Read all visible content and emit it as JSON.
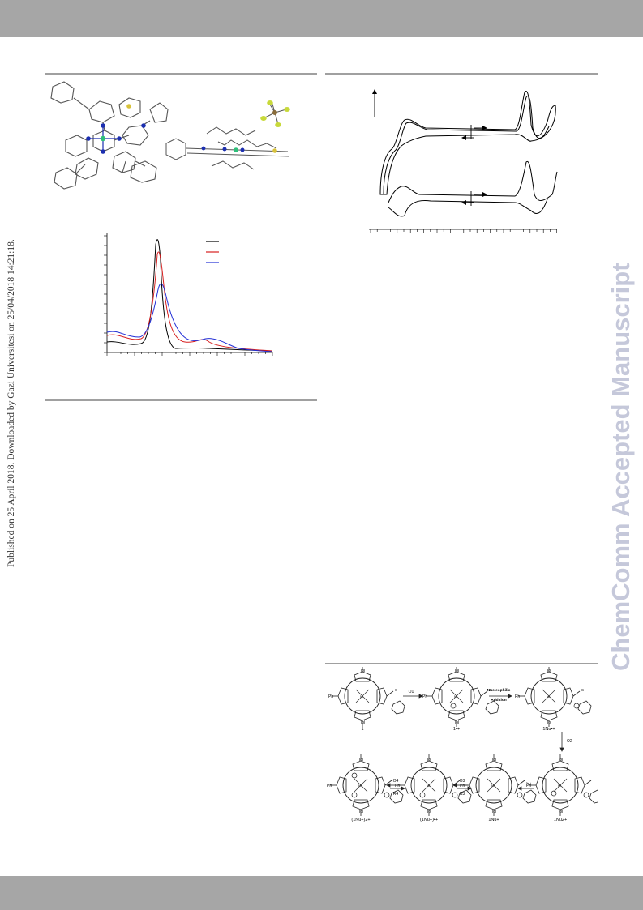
{
  "watermark_left": "Published on 25 April 2018. Downloaded by Gazi Universitesi on 25/04/2018 14:21:18.",
  "watermark_right": "ChemComm Accepted Manuscript",
  "colors": {
    "band": "#a6a6a6",
    "rule": "#a0a0a0",
    "nitrogen": "#1c2fb0",
    "sulfur": "#d8c23a",
    "nickel": "#2fbf7a",
    "fluorine": "#c8d93a",
    "series_black": "#000000",
    "series_red": "#d71f1f",
    "series_blue": "#2330d6"
  },
  "scheme": {
    "labels": {
      "c1": "1",
      "c2": "1•+",
      "c3": "1Nu•+",
      "c4": "1Nu2+",
      "c5": "1Nu+",
      "c6": "(1Nu+)•+",
      "c7": "(1Nu+)2+"
    },
    "arrows": {
      "a1": "O1",
      "a2_top": "Nucleophilic",
      "a2_bottom": "Addition",
      "a3": "O2",
      "a4": "- H+",
      "a5_top": "O3",
      "a5_bottom": "R3",
      "a6_top": "O4",
      "a6_bottom": "R4"
    },
    "substituents": {
      "tol": "Tol",
      "ph": "Ph",
      "ni": "Ni",
      "n": "N",
      "s": "S",
      "h": "H"
    }
  },
  "chart_data": [
    {
      "type": "line",
      "title": "",
      "xlabel": "",
      "ylabel": "",
      "series": [
        {
          "color": "black",
          "peak_x": 0.3,
          "peak_y": 0.96
        },
        {
          "color": "red",
          "peak_x": 0.31,
          "peak_y": 0.82
        },
        {
          "color": "blue",
          "peak_x": 0.34,
          "peak_y": 0.64
        }
      ]
    },
    {
      "type": "line",
      "title": "",
      "xlabel": "",
      "ylabel": "",
      "series": [
        {
          "color": "black"
        },
        {
          "color": "black"
        }
      ]
    }
  ]
}
